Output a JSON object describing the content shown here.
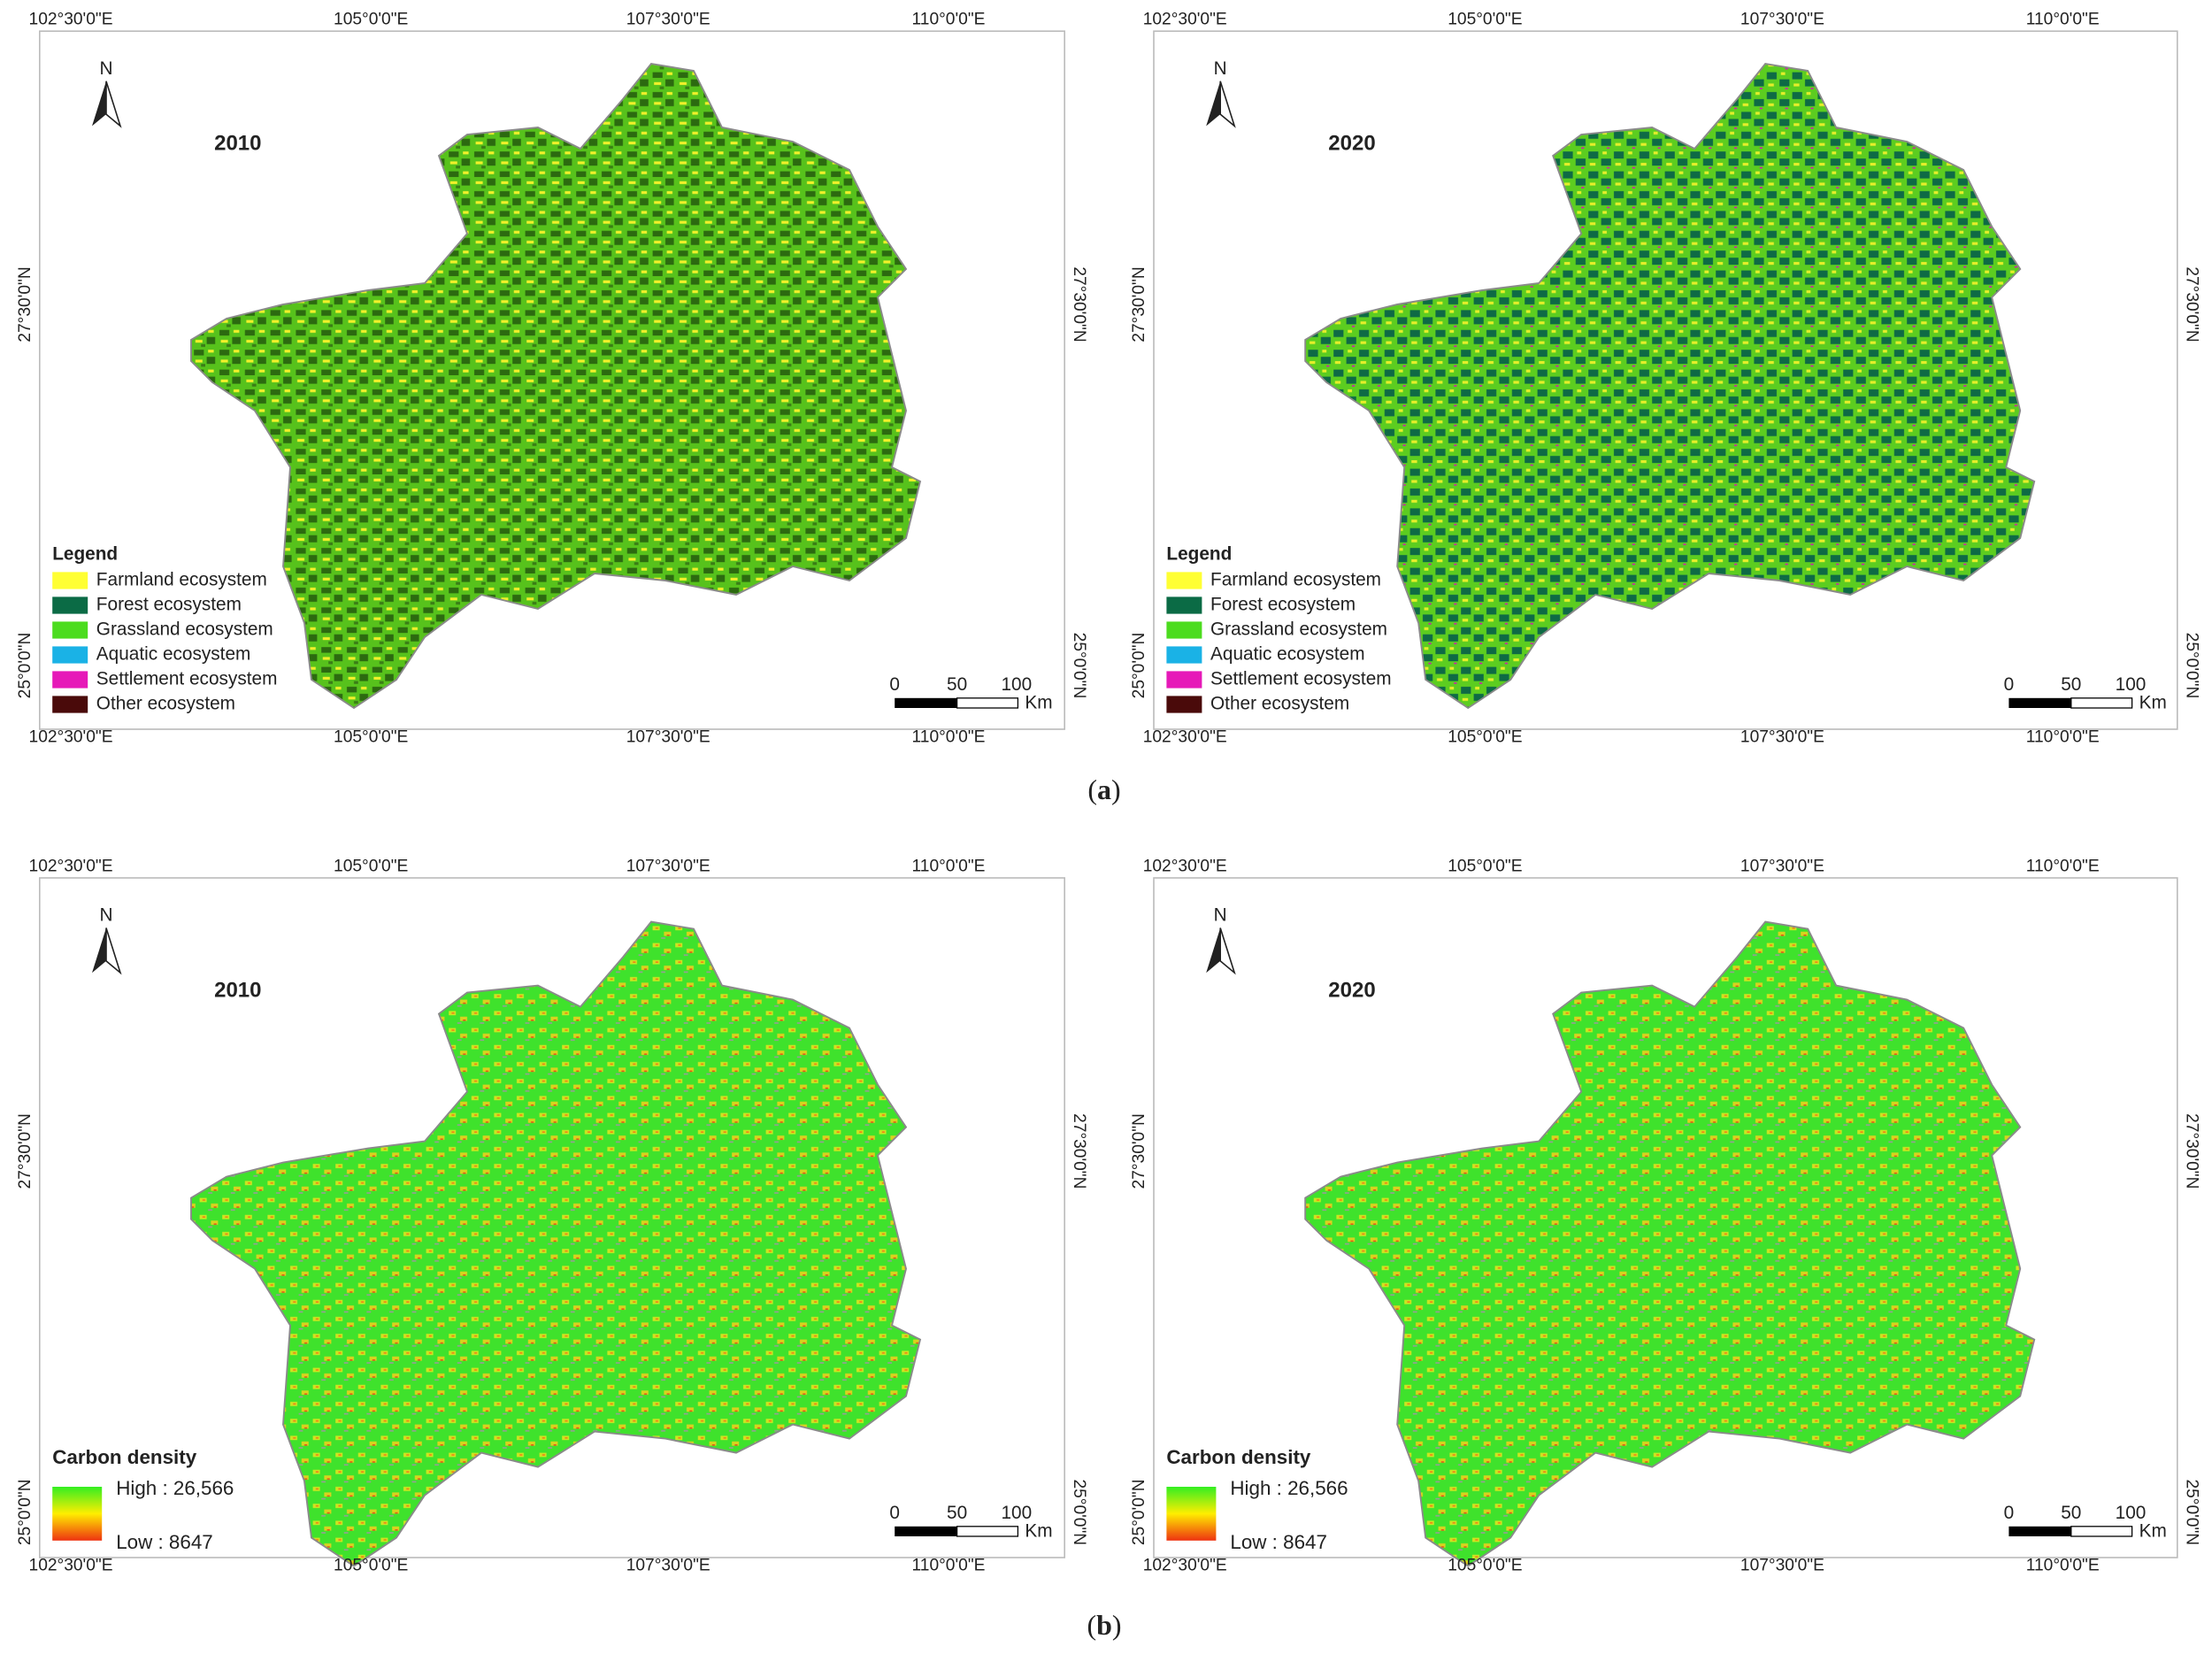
{
  "panels": [
    {
      "year": "2010",
      "top_labels": [
        "102°30'0\"E",
        "105°0'0\"E",
        "107°30'0\"E",
        "110°0'0\"E"
      ],
      "bottom_labels": [
        "102°30'0\"E",
        "105°0'0\"E",
        "107°30'0\"E",
        "110°0'0\"E"
      ],
      "left_labels": [
        "27°30'0\"N",
        "25°0'0\"N"
      ],
      "right_labels": [
        "27°30'0\"N",
        "25°0'0\"N"
      ],
      "north": "N",
      "legend": {
        "title": "Legend",
        "items": [
          {
            "label": "Farmland ecosystem",
            "color": "#ffff33"
          },
          {
            "label": "Forest ecosystem",
            "color": "#0b6b45"
          },
          {
            "label": "Grassland ecosystem",
            "color": "#4cdc1f"
          },
          {
            "label": "Aquatic ecosystem",
            "color": "#1ab2e6"
          },
          {
            "label": "Settlement ecosystem",
            "color": "#e619b8"
          },
          {
            "label": "Other ecosystem",
            "color": "#4a0a0a"
          }
        ]
      },
      "scale": {
        "labels": [
          "0",
          "50",
          "100"
        ],
        "unit": "Km"
      }
    },
    {
      "year": "2020",
      "top_labels": [
        "102°30'0\"E",
        "105°0'0\"E",
        "107°30'0\"E",
        "110°0'0\"E"
      ],
      "bottom_labels": [
        "102°30'0\"E",
        "105°0'0\"E",
        "107°30'0\"E",
        "110°0'0\"E"
      ],
      "left_labels": [
        "27°30'0\"N",
        "25°0'0\"N"
      ],
      "right_labels": [
        "27°30'0\"N",
        "25°0'0\"N"
      ],
      "north": "N",
      "legend": {
        "title": "Legend",
        "items": [
          {
            "label": "Farmland ecosystem",
            "color": "#ffff33"
          },
          {
            "label": "Forest ecosystem",
            "color": "#0b6b45"
          },
          {
            "label": "Grassland ecosystem",
            "color": "#4cdc1f"
          },
          {
            "label": "Aquatic ecosystem",
            "color": "#1ab2e6"
          },
          {
            "label": "Settlement ecosystem",
            "color": "#e619b8"
          },
          {
            "label": "Other ecosystem",
            "color": "#4a0a0a"
          }
        ]
      },
      "scale": {
        "labels": [
          "0",
          "50",
          "100"
        ],
        "unit": "Km"
      }
    },
    {
      "year": "2010",
      "top_labels": [
        "102°30'0\"E",
        "105°0'0\"E",
        "107°30'0\"E",
        "110°0'0\"E"
      ],
      "bottom_labels": [
        "102°30'0\"E",
        "105°0'0\"E",
        "107°30'0\"E",
        "110°0'0\"E"
      ],
      "left_labels": [
        "27°30'0\"N",
        "25°0'0\"N"
      ],
      "right_labels": [
        "27°30'0\"N",
        "25°0'0\"N"
      ],
      "north": "N",
      "carbon_legend": {
        "title": "Carbon density",
        "high": "High : 26,566",
        "low": "Low : 8647",
        "colors": [
          "#33ee22",
          "#ffee00",
          "#ee3311"
        ]
      },
      "scale": {
        "labels": [
          "0",
          "50",
          "100"
        ],
        "unit": "Km"
      }
    },
    {
      "year": "2020",
      "top_labels": [
        "102°30'0\"E",
        "105°0'0\"E",
        "107°30'0\"E",
        "110°0'0\"E"
      ],
      "bottom_labels": [
        "102°30'0\"E",
        "105°0'0\"E",
        "107°30'0\"E",
        "110°0'0\"E"
      ],
      "left_labels": [
        "27°30'0\"N",
        "25°0'0\"N"
      ],
      "right_labels": [
        "27°30'0\"N",
        "25°0'0\"N"
      ],
      "north": "N",
      "carbon_legend": {
        "title": "Carbon density",
        "high": "High : 26,566",
        "low": "Low : 8647",
        "colors": [
          "#33ee22",
          "#ffee00",
          "#ee3311"
        ]
      },
      "scale": {
        "labels": [
          "0",
          "50",
          "100"
        ],
        "unit": "Km"
      }
    }
  ],
  "captions": [
    [
      "(",
      "a",
      ")"
    ],
    [
      "(",
      "b",
      ")"
    ]
  ]
}
